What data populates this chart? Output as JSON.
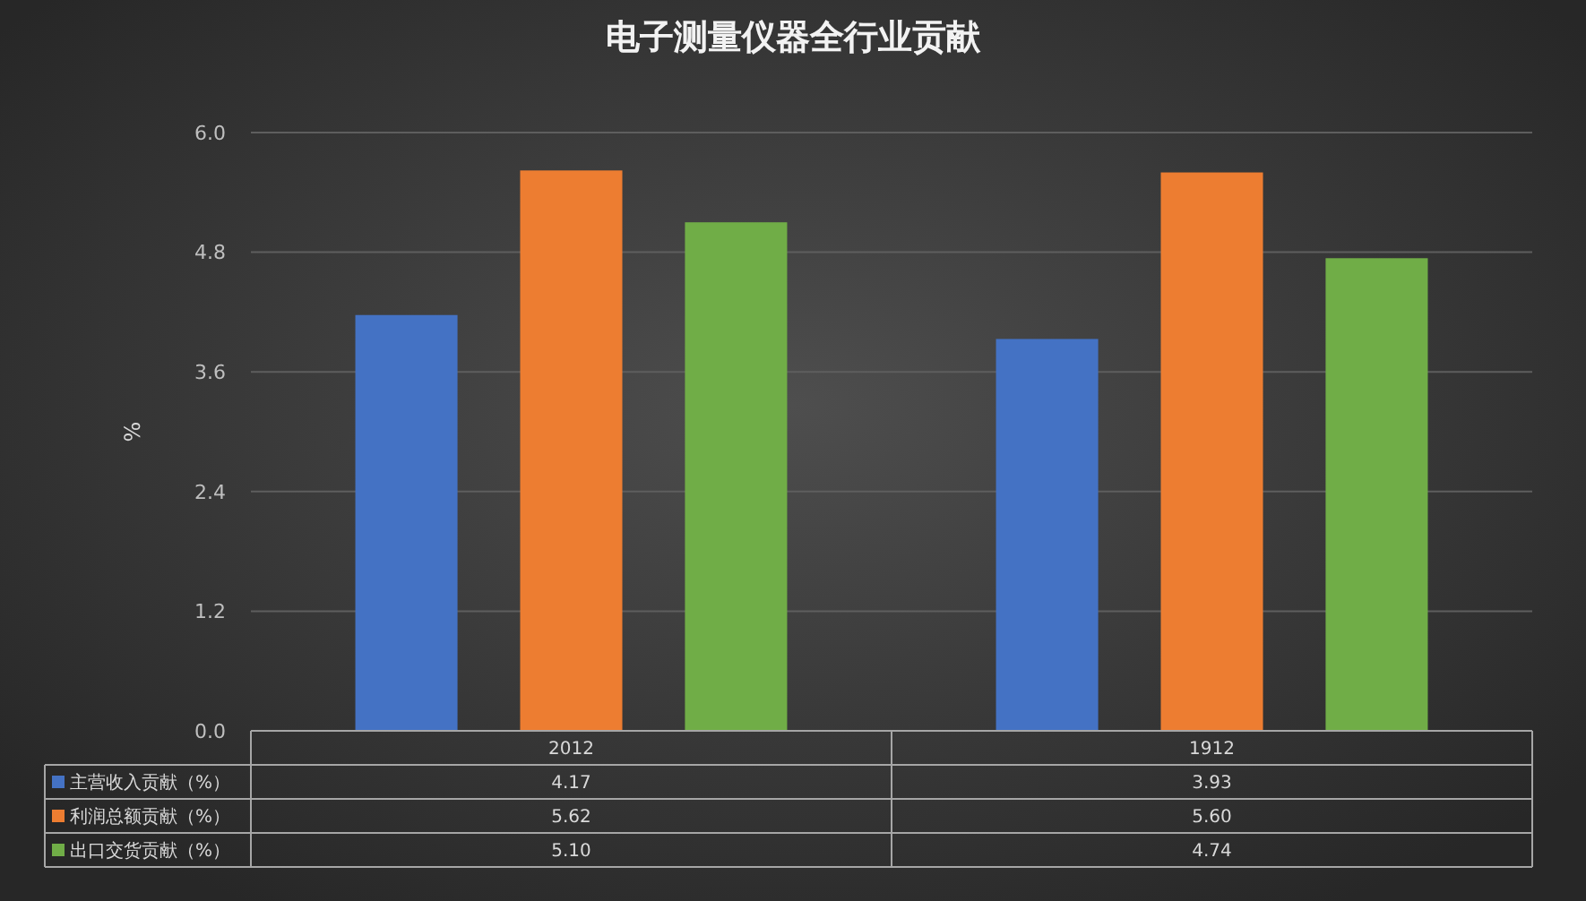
{
  "chart_data": {
    "type": "bar",
    "title": "电子测量仪器全行业贡献",
    "ylabel": "%",
    "categories": [
      "2012",
      "1912"
    ],
    "series": [
      {
        "name": "主营收入贡献（%）",
        "color": "#4472c4",
        "values": [
          4.17,
          3.93
        ],
        "value_labels": [
          "4.17",
          "3.93"
        ]
      },
      {
        "name": "利润总额贡献（%）",
        "color": "#ed7d31",
        "values": [
          5.62,
          5.6
        ],
        "value_labels": [
          "5.62",
          "5.60"
        ]
      },
      {
        "name": "出口交货贡献（%）",
        "color": "#70ad47",
        "values": [
          5.1,
          4.74
        ],
        "value_labels": [
          "5.10",
          "4.74"
        ]
      }
    ],
    "ylim": [
      0,
      6
    ],
    "yticks": [
      {
        "value": 0,
        "label": "0.0"
      },
      1.2,
      2.4,
      3.6,
      4.8,
      {
        "value": 6,
        "label": "6.0"
      }
    ],
    "grid": "y",
    "legend": "bottom"
  }
}
